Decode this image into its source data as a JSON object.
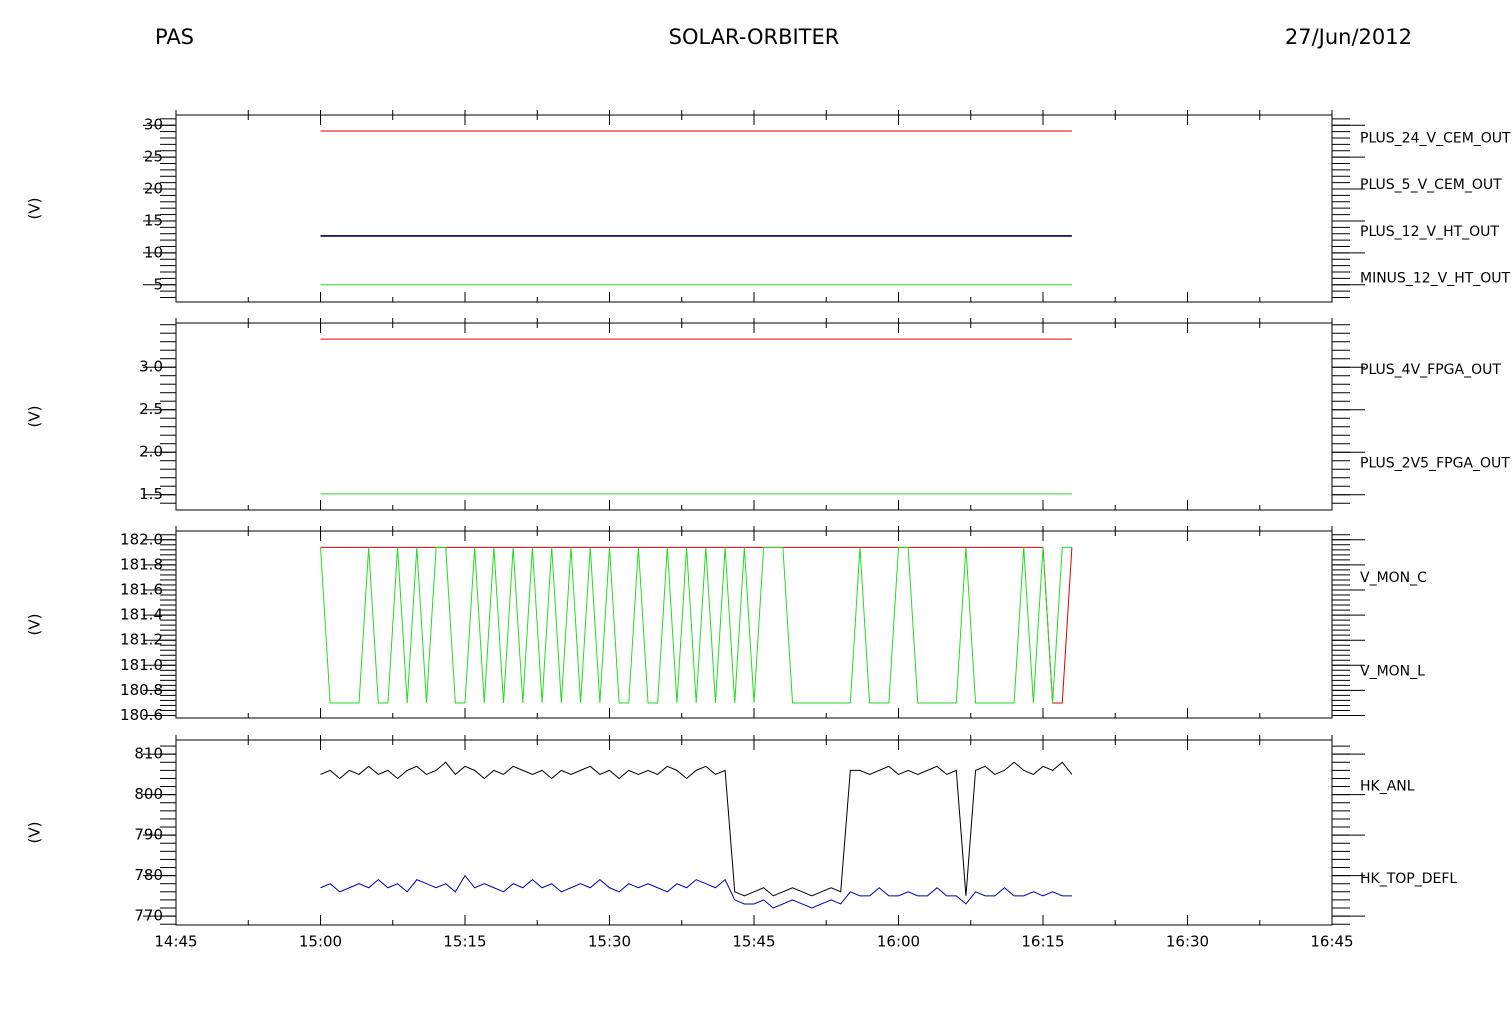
{
  "header": {
    "left": "PAS",
    "title": "SOLAR-ORBITER",
    "date": "27/Jun/2012"
  },
  "chart_data": [
    {
      "type": "line",
      "ylabel": "(V)",
      "x": [
        "15:00",
        "16:18"
      ],
      "xlim": [
        "14:45",
        "16:45"
      ],
      "xticks": [
        "14:45",
        "15:00",
        "15:15",
        "15:30",
        "15:45",
        "16:00",
        "16:15",
        "16:30",
        "16:45"
      ],
      "ylim": [
        2.3,
        31.6
      ],
      "yticks": [
        5,
        10,
        15,
        20,
        25,
        30
      ],
      "series": [
        {
          "name": "PLUS_24_V_CEM_OUT",
          "color": "#e00000",
          "values": [
            29.1,
            29.1
          ]
        },
        {
          "name": "PLUS_5_V_CEM_OUT",
          "color": "#22dd22",
          "values": [
            5.0,
            5.0
          ]
        },
        {
          "name": "PLUS_12_V_HT_OUT",
          "color": "#0000aa",
          "values": [
            12.7,
            12.7
          ]
        },
        {
          "name": "MINUS_12_V_HT_OUT",
          "color": "#000000",
          "values": [
            12.6,
            12.6
          ]
        }
      ]
    },
    {
      "type": "line",
      "ylabel": "(V)",
      "x": [
        "15:00",
        "16:18"
      ],
      "xlim": [
        "14:45",
        "16:45"
      ],
      "xticks": [
        "14:45",
        "15:00",
        "15:15",
        "15:30",
        "15:45",
        "16:00",
        "16:15",
        "16:30",
        "16:45"
      ],
      "ylim": [
        1.32,
        3.52
      ],
      "yticks": [
        1.5,
        {
          "value": 2,
          "label": "2.0"
        },
        2.5,
        {
          "value": 3,
          "label": "3.0"
        }
      ],
      "series": [
        {
          "name": "PLUS_4V_FPGA_OUT",
          "color": "#e00000",
          "values": [
            3.33,
            3.33
          ]
        },
        {
          "name": "PLUS_2V5_FPGA_OUT",
          "color": "#22dd22",
          "values": [
            1.51,
            1.51
          ]
        }
      ]
    },
    {
      "type": "line",
      "ylabel": "(V)",
      "x": [
        "15:00",
        "15:01",
        "15:02",
        "15:03",
        "15:04",
        "15:05",
        "15:06",
        "15:07",
        "15:08",
        "15:09",
        "15:10",
        "15:11",
        "15:12",
        "15:13",
        "15:14",
        "15:15",
        "15:16",
        "15:17",
        "15:18",
        "15:19",
        "15:20",
        "15:21",
        "15:22",
        "15:23",
        "15:24",
        "15:25",
        "15:26",
        "15:27",
        "15:28",
        "15:29",
        "15:30",
        "15:31",
        "15:32",
        "15:33",
        "15:34",
        "15:35",
        "15:36",
        "15:37",
        "15:38",
        "15:39",
        "15:40",
        "15:41",
        "15:42",
        "15:43",
        "15:44",
        "15:45",
        "15:46",
        "15:47",
        "15:48",
        "15:49",
        "15:50",
        "15:51",
        "15:52",
        "15:53",
        "15:54",
        "15:55",
        "15:56",
        "15:57",
        "15:58",
        "15:59",
        "16:00",
        "16:01",
        "16:02",
        "16:03",
        "16:04",
        "16:05",
        "16:06",
        "16:07",
        "16:08",
        "16:09",
        "16:10",
        "16:11",
        "16:12",
        "16:13",
        "16:14",
        "16:15",
        "16:16",
        "16:17",
        "16:18"
      ],
      "xlim": [
        "14:45",
        "16:45"
      ],
      "xticks": [
        "14:45",
        "15:00",
        "15:15",
        "15:30",
        "15:45",
        "16:00",
        "16:15",
        "16:30",
        "16:45"
      ],
      "ylim": [
        180.58,
        182.07
      ],
      "yticks": [
        180.6,
        180.8,
        {
          "value": 181,
          "label": "181.0"
        },
        181.2,
        181.4,
        181.6,
        181.8,
        {
          "value": 182,
          "label": "182.0"
        }
      ],
      "series": [
        {
          "name": "V_MON_C",
          "color": "#e00000",
          "values": [
            181.94,
            181.94,
            181.94,
            181.94,
            181.94,
            181.94,
            181.94,
            181.94,
            181.94,
            181.94,
            181.94,
            181.94,
            181.94,
            181.94,
            181.94,
            181.94,
            181.94,
            181.94,
            181.94,
            181.94,
            181.94,
            181.94,
            181.94,
            181.94,
            181.94,
            181.94,
            181.94,
            181.94,
            181.94,
            181.94,
            181.94,
            181.94,
            181.94,
            181.94,
            181.94,
            181.94,
            181.94,
            181.94,
            181.94,
            181.94,
            181.94,
            181.94,
            181.94,
            181.94,
            181.94,
            181.94,
            181.94,
            181.94,
            181.94,
            181.94,
            181.94,
            181.94,
            181.94,
            181.94,
            181.94,
            181.94,
            181.94,
            181.94,
            181.94,
            181.94,
            181.94,
            181.94,
            181.94,
            181.94,
            181.94,
            181.94,
            181.94,
            181.94,
            181.94,
            181.94,
            181.94,
            181.94,
            181.94,
            181.94,
            181.94,
            181.94,
            180.7,
            180.7,
            181.94
          ]
        },
        {
          "name": "V_MON_L",
          "color": "#22dd22",
          "values": [
            181.94,
            180.7,
            180.7,
            180.7,
            180.7,
            181.94,
            180.7,
            180.7,
            181.94,
            180.7,
            181.94,
            180.7,
            181.94,
            181.94,
            180.7,
            180.7,
            181.94,
            180.7,
            181.94,
            180.7,
            181.94,
            180.7,
            181.94,
            180.7,
            181.94,
            180.7,
            181.94,
            180.7,
            181.94,
            180.7,
            181.94,
            180.7,
            180.7,
            181.94,
            180.7,
            180.7,
            181.94,
            180.7,
            181.94,
            180.7,
            181.94,
            180.7,
            181.94,
            180.7,
            181.94,
            180.7,
            181.94,
            181.94,
            181.94,
            180.7,
            180.7,
            180.7,
            180.7,
            180.7,
            180.7,
            180.7,
            181.94,
            180.7,
            180.7,
            180.7,
            181.94,
            181.94,
            180.7,
            180.7,
            180.7,
            180.7,
            180.7,
            181.94,
            180.7,
            180.7,
            180.7,
            180.7,
            180.7,
            181.94,
            180.7,
            181.94,
            180.7,
            181.94,
            181.94
          ]
        }
      ]
    },
    {
      "type": "line",
      "ylabel": "(V)",
      "x": [
        "15:00",
        "15:01",
        "15:02",
        "15:03",
        "15:04",
        "15:05",
        "15:06",
        "15:07",
        "15:08",
        "15:09",
        "15:10",
        "15:11",
        "15:12",
        "15:13",
        "15:14",
        "15:15",
        "15:16",
        "15:17",
        "15:18",
        "15:19",
        "15:20",
        "15:21",
        "15:22",
        "15:23",
        "15:24",
        "15:25",
        "15:26",
        "15:27",
        "15:28",
        "15:29",
        "15:30",
        "15:31",
        "15:32",
        "15:33",
        "15:34",
        "15:35",
        "15:36",
        "15:37",
        "15:38",
        "15:39",
        "15:40",
        "15:41",
        "15:42",
        "15:43",
        "15:44",
        "15:45",
        "15:46",
        "15:47",
        "15:48",
        "15:49",
        "15:50",
        "15:51",
        "15:52",
        "15:53",
        "15:54",
        "15:55",
        "15:56",
        "15:57",
        "15:58",
        "15:59",
        "16:00",
        "16:01",
        "16:02",
        "16:03",
        "16:04",
        "16:05",
        "16:06",
        "16:07",
        "16:08",
        "16:09",
        "16:10",
        "16:11",
        "16:12",
        "16:13",
        "16:14",
        "16:15",
        "16:16",
        "16:17",
        "16:18"
      ],
      "xlim": [
        "14:45",
        "16:45"
      ],
      "xticks": [
        "14:45",
        "15:00",
        "15:15",
        "15:30",
        "15:45",
        "16:00",
        "16:15",
        "16:30",
        "16:45"
      ],
      "ylim": [
        767.8,
        813.5
      ],
      "yticks": [
        770,
        780,
        790,
        800,
        810
      ],
      "series": [
        {
          "name": "HK_ANL",
          "color": "#000000",
          "values": [
            805,
            806,
            804,
            806,
            805,
            807,
            805,
            806,
            804,
            806,
            807,
            805,
            806,
            808,
            805,
            807,
            806,
            804,
            806,
            805,
            807,
            806,
            805,
            806,
            804,
            806,
            805,
            806,
            807,
            805,
            806,
            804,
            806,
            805,
            806,
            805,
            807,
            806,
            804,
            806,
            807,
            805,
            806,
            776,
            775,
            776,
            777,
            775,
            776,
            777,
            776,
            775,
            776,
            777,
            776,
            806,
            806,
            805,
            806,
            807,
            805,
            806,
            805,
            806,
            807,
            805,
            806,
            775,
            806,
            807,
            805,
            806,
            808,
            806,
            805,
            807,
            806,
            808,
            805
          ]
        },
        {
          "name": "HK_TOP_DEFL",
          "color": "#0000aa",
          "values": [
            777,
            778,
            776,
            777,
            778,
            777,
            779,
            777,
            778,
            776,
            779,
            778,
            777,
            778,
            776,
            780,
            777,
            778,
            777,
            776,
            778,
            777,
            779,
            777,
            778,
            776,
            777,
            778,
            777,
            779,
            777,
            776,
            778,
            777,
            778,
            777,
            776,
            778,
            777,
            779,
            778,
            777,
            779,
            774,
            773,
            773,
            774,
            772,
            773,
            774,
            773,
            772,
            773,
            774,
            773,
            776,
            775,
            775,
            777,
            775,
            775,
            776,
            775,
            775,
            777,
            775,
            775,
            773,
            776,
            775,
            775,
            777,
            775,
            775,
            776,
            775,
            776,
            775,
            775
          ]
        }
      ]
    }
  ]
}
